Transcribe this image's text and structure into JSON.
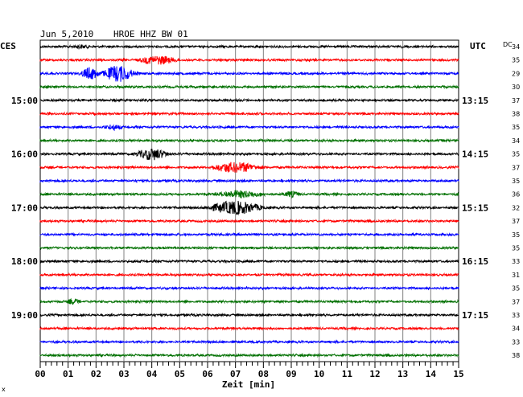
{
  "header": {
    "date": "Jun 5,2010",
    "station": "HROE HHZ BW 01",
    "left_zone": "CES",
    "right_zone": "UTC",
    "dc_label": "DC"
  },
  "footer": {
    "note": "x"
  },
  "chart_data": {
    "type": "line",
    "title": "Jun 5,2010   HROE HHZ BW 01",
    "xlabel": "Zeit [min]",
    "x_ticks": [
      "00",
      "01",
      "02",
      "03",
      "04",
      "05",
      "06",
      "07",
      "08",
      "09",
      "10",
      "11",
      "12",
      "13",
      "14",
      "15"
    ],
    "xlim": [
      0,
      15
    ],
    "left_time_labels": [
      "15:00",
      "16:00",
      "17:00",
      "18:00",
      "19:00"
    ],
    "right_time_labels": [
      "13:15",
      "14:15",
      "15:15",
      "16:15",
      "17:15"
    ],
    "time_label_trace_index": [
      4,
      8,
      12,
      16,
      20
    ],
    "trace_colors": [
      "#000000",
      "#ff0000",
      "#0000ff",
      "#007000"
    ],
    "dc_values": [
      "34",
      "35",
      "29",
      "30",
      "37",
      "38",
      "35",
      "34",
      "35",
      "37",
      "35",
      "36",
      "32",
      "37",
      "35",
      "35",
      "33",
      "31",
      "35",
      "37",
      "33",
      "34",
      "33",
      "38"
    ],
    "events": [
      {
        "trace": 0,
        "minute": 1.5,
        "amplitude": 3,
        "duration": 0.5
      },
      {
        "trace": 1,
        "minute": 4.2,
        "amplitude": 6,
        "duration": 1.2
      },
      {
        "trace": 2,
        "minute": 1.8,
        "amplitude": 8,
        "duration": 0.6
      },
      {
        "trace": 2,
        "minute": 2.8,
        "amplitude": 11,
        "duration": 0.9
      },
      {
        "trace": 6,
        "minute": 2.6,
        "amplitude": 4,
        "duration": 0.6
      },
      {
        "trace": 8,
        "minute": 4.0,
        "amplitude": 8,
        "duration": 0.9
      },
      {
        "trace": 9,
        "minute": 7.0,
        "amplitude": 7,
        "duration": 1.5
      },
      {
        "trace": 11,
        "minute": 7.2,
        "amplitude": 5,
        "duration": 1.6
      },
      {
        "trace": 11,
        "minute": 9.0,
        "amplitude": 4,
        "duration": 0.6
      },
      {
        "trace": 12,
        "minute": 7.0,
        "amplitude": 9,
        "duration": 1.5
      },
      {
        "trace": 19,
        "minute": 1.2,
        "amplitude": 4,
        "duration": 0.4
      }
    ]
  }
}
